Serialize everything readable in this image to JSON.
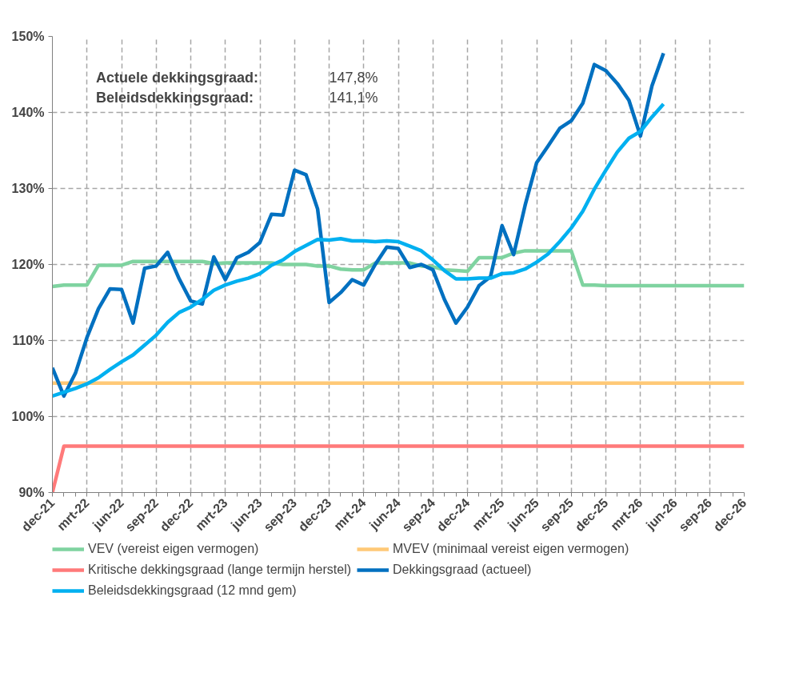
{
  "chart_data": {
    "type": "line",
    "categories": [
      "dec-21",
      null,
      null,
      "mrt-22",
      null,
      null,
      "jun-22",
      null,
      null,
      "sep-22",
      null,
      null,
      "dec-22",
      null,
      null,
      "mrt-23",
      null,
      null,
      "jun-23",
      null,
      null,
      "sep-23",
      null,
      null,
      "dec-23",
      null,
      null,
      "mrt-24",
      null,
      null,
      "jun-24",
      null,
      null,
      "sep-24",
      null,
      null,
      "dec-24",
      null,
      null,
      "mrt-25",
      null,
      null,
      "jun-25",
      null,
      null,
      "sep-25",
      null,
      null,
      "dec-25",
      null,
      null,
      "mrt-26",
      null,
      null,
      "jun-26",
      null,
      null,
      "sep-26",
      null,
      null,
      "dec-26"
    ],
    "series": [
      {
        "name": "VEV (vereist eigen vermogen)",
        "color": "#7fd3a0",
        "values": [
          117.1,
          117.3,
          117.3,
          117.3,
          119.9,
          119.9,
          119.9,
          120.4,
          120.4,
          120.4,
          120.4,
          120.4,
          120.4,
          120.4,
          120.1,
          120.2,
          120.2,
          120.2,
          120.2,
          120.2,
          120.0,
          120.0,
          120.0,
          119.8,
          119.8,
          119.4,
          119.3,
          119.3,
          120.2,
          120.2,
          120.2,
          120.2,
          119.8,
          119.7,
          119.3,
          119.2,
          119.1,
          120.9,
          120.9,
          120.9,
          121.5,
          121.8,
          121.8,
          121.8,
          121.8,
          121.8,
          117.3,
          117.3,
          117.2,
          117.2,
          117.2,
          117.2,
          117.2,
          117.2,
          117.2,
          117.2,
          117.2,
          117.2,
          117.2,
          117.2,
          117.2
        ]
      },
      {
        "name": "MVEV (minimaal vereist eigen vermogen)",
        "color": "#ffc977",
        "values": [
          104.4,
          104.4,
          104.4,
          104.4,
          104.4,
          104.4,
          104.4,
          104.4,
          104.4,
          104.4,
          104.4,
          104.4,
          104.4,
          104.4,
          104.4,
          104.4,
          104.4,
          104.4,
          104.4,
          104.4,
          104.4,
          104.4,
          104.4,
          104.4,
          104.4,
          104.4,
          104.4,
          104.4,
          104.4,
          104.4,
          104.4,
          104.4,
          104.4,
          104.4,
          104.4,
          104.4,
          104.4,
          104.4,
          104.4,
          104.4,
          104.4,
          104.4,
          104.4,
          104.4,
          104.4,
          104.4,
          104.4,
          104.4,
          104.4,
          104.4,
          104.4,
          104.4,
          104.4,
          104.4,
          104.4,
          104.4,
          104.4,
          104.4,
          104.4,
          104.4,
          104.4
        ]
      },
      {
        "name": "Kritische dekkingsgraad (lange termijn herstel)",
        "color": "#ff7a7a",
        "values": [
          90.0,
          96.1,
          96.1,
          96.1,
          96.1,
          96.1,
          96.1,
          96.1,
          96.1,
          96.1,
          96.1,
          96.1,
          96.1,
          96.1,
          96.1,
          96.1,
          96.1,
          96.1,
          96.1,
          96.1,
          96.1,
          96.1,
          96.1,
          96.1,
          96.1,
          96.1,
          96.1,
          96.1,
          96.1,
          96.1,
          96.1,
          96.1,
          96.1,
          96.1,
          96.1,
          96.1,
          96.1,
          96.1,
          96.1,
          96.1,
          96.1,
          96.1,
          96.1,
          96.1,
          96.1,
          96.1,
          96.1,
          96.1,
          96.1,
          96.1,
          96.1,
          96.1,
          96.1,
          96.1,
          96.1,
          96.1,
          96.1,
          96.1,
          96.1,
          96.1,
          96.1
        ]
      },
      {
        "name": "Dekkingsgraad (actueel)",
        "color": "#0070c0",
        "values": [
          106.4,
          102.7,
          105.7,
          110.4,
          114.2,
          116.8,
          116.7,
          112.3,
          119.5,
          119.8,
          121.6,
          118.1,
          115.2,
          114.8,
          121.0,
          118.0,
          120.9,
          121.6,
          122.9,
          126.6,
          126.5,
          132.4,
          131.8,
          127.3,
          115.0,
          116.3,
          118.0,
          117.3,
          120.0,
          122.3,
          122.1,
          119.6,
          120.0,
          119.3,
          115.4,
          112.3,
          114.4,
          117.2,
          118.4,
          125.1,
          121.3,
          127.8,
          133.4,
          135.6,
          137.9,
          138.9,
          141.2,
          146.3,
          145.5,
          143.8,
          141.6,
          136.9,
          143.5,
          147.8,
          null,
          null,
          null,
          null,
          null,
          null,
          null
        ]
      },
      {
        "name": "Beleidsdekkingsgraad (12 mnd gem)",
        "color": "#00b0f0",
        "values": [
          102.7,
          103.2,
          103.7,
          104.3,
          105.1,
          106.2,
          107.2,
          108.1,
          109.4,
          110.7,
          112.4,
          113.7,
          114.4,
          115.4,
          116.6,
          117.3,
          117.8,
          118.2,
          118.8,
          119.9,
          120.6,
          121.7,
          122.5,
          123.3,
          123.2,
          123.4,
          123.1,
          123.1,
          123.0,
          123.1,
          123.0,
          122.4,
          121.8,
          120.6,
          119.2,
          118.1,
          118.1,
          118.2,
          118.2,
          118.8,
          118.9,
          119.4,
          120.3,
          121.4,
          123.0,
          124.8,
          127.0,
          129.9,
          132.4,
          134.8,
          136.6,
          137.5,
          139.4,
          141.1,
          null,
          null,
          null,
          null,
          null,
          null,
          null
        ]
      }
    ],
    "ylim": [
      90,
      150
    ],
    "yticks": [
      {
        "value": 90,
        "label": "90%"
      },
      {
        "value": 100,
        "label": "100%"
      },
      {
        "value": 110,
        "label": "110%"
      },
      {
        "value": 120,
        "label": "120%"
      },
      {
        "value": 130,
        "label": "130%"
      },
      {
        "value": 140,
        "label": "140%"
      },
      {
        "value": 150,
        "label": "150%"
      }
    ],
    "annotations": [
      "Actuele dekkingsgraad:",
      "147,8%",
      "Beleidsdekkingsgraad:",
      "141,1%"
    ],
    "grid": true,
    "legend": "bottom",
    "line_style": "solid",
    "marker": "none"
  }
}
